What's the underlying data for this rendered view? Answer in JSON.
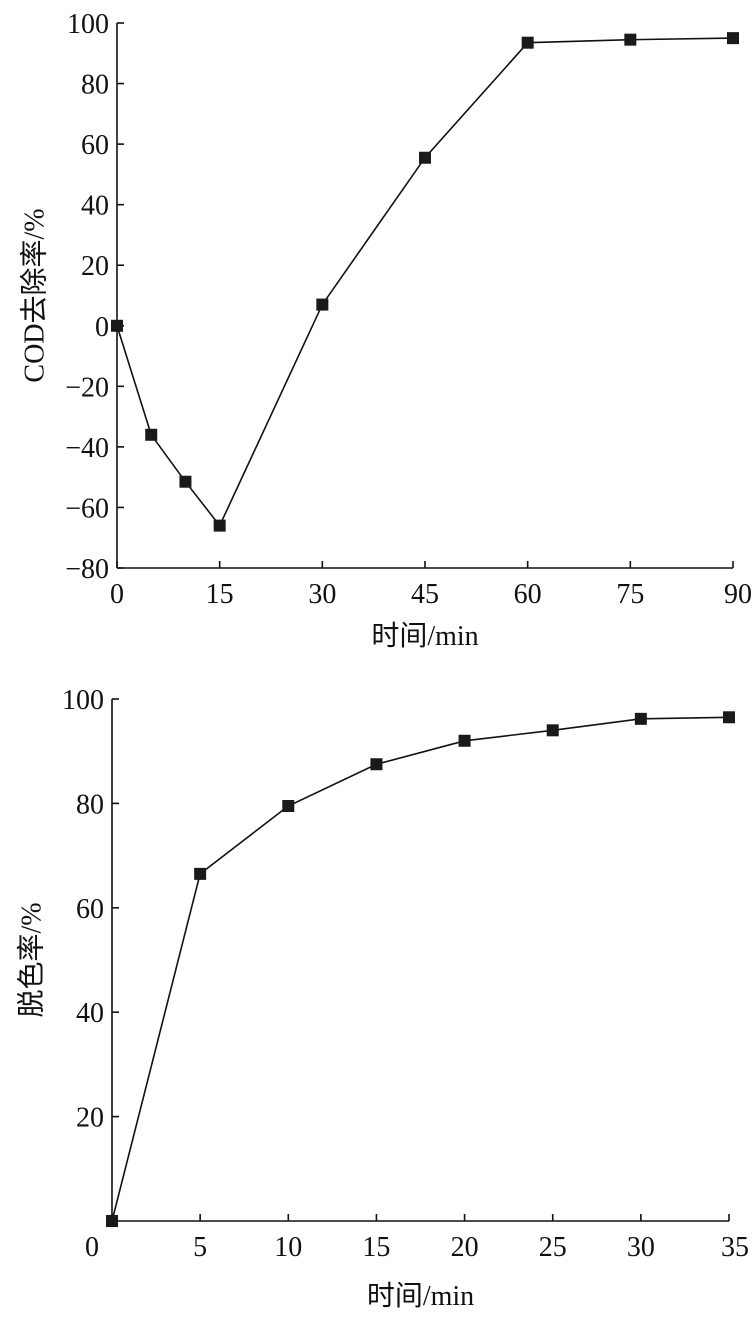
{
  "chart_data": [
    {
      "type": "line",
      "xlabel": "时间/min",
      "ylabel": "COD去除率/%",
      "xlim": [
        0,
        90
      ],
      "ylim": [
        -80,
        100
      ],
      "xticks": [
        0,
        15,
        30,
        45,
        60,
        75,
        90
      ],
      "yticks": [
        -80,
        -60,
        -40,
        -20,
        0,
        20,
        40,
        60,
        80,
        100
      ],
      "x_tick_labels": [
        "0",
        "15",
        "30",
        "45",
        "60",
        "75",
        "90"
      ],
      "y_tick_labels": [
        "−80",
        "−60",
        "−40",
        "−20",
        "0",
        "20",
        "40",
        "60",
        "80",
        "100"
      ],
      "grid": false,
      "marker": "square",
      "series": [
        {
          "x": [
            0,
            5,
            10,
            15,
            30,
            45,
            60,
            75,
            90
          ],
          "values": [
            0,
            -36,
            -51.5,
            -66,
            7,
            55.5,
            93.5,
            94.5,
            95
          ]
        }
      ]
    },
    {
      "type": "line",
      "xlabel": "时间/min",
      "ylabel": "脱色率/%",
      "xlim": [
        0,
        35
      ],
      "ylim": [
        0,
        100
      ],
      "xticks": [
        0,
        5,
        10,
        15,
        20,
        25,
        30,
        35
      ],
      "yticks": [
        20,
        40,
        60,
        80,
        100
      ],
      "x_tick_labels": [
        "0",
        "5",
        "10",
        "15",
        "20",
        "25",
        "30",
        "35"
      ],
      "y_tick_labels": [
        "20",
        "40",
        "60",
        "80",
        "100"
      ],
      "grid": false,
      "marker": "square",
      "series": [
        {
          "x": [
            0,
            5,
            10,
            15,
            20,
            25,
            30,
            35
          ],
          "values": [
            0,
            66.5,
            79.5,
            87.5,
            92,
            94,
            96.2,
            96.5
          ]
        }
      ]
    }
  ]
}
